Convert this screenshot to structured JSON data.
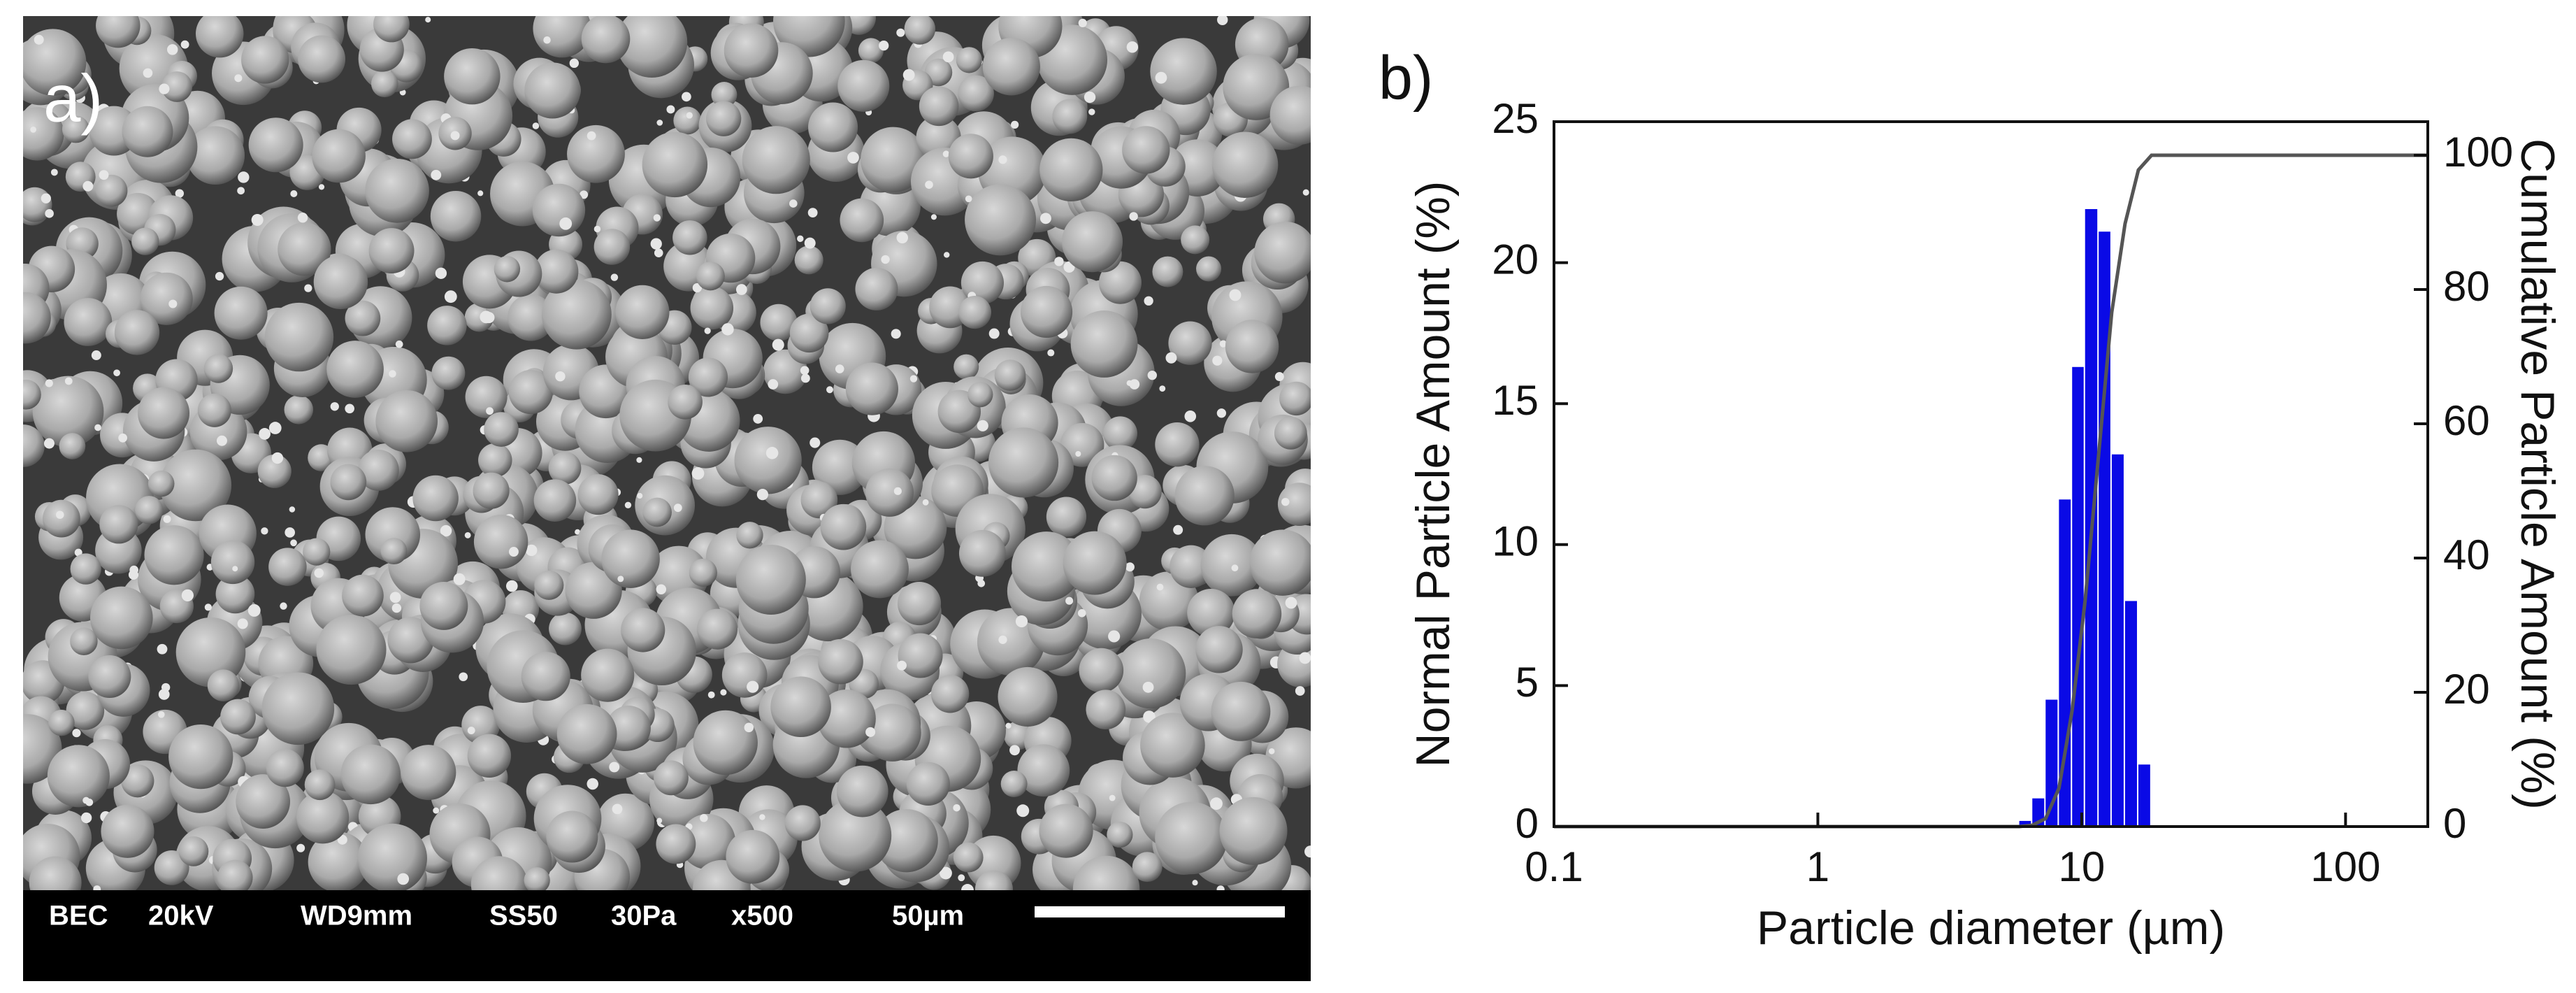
{
  "panel_a": {
    "label": "a)",
    "info_bar": [
      "BEC",
      "20kV",
      "WD9mm",
      "SS50",
      "30Pa",
      "x500",
      "50µm"
    ]
  },
  "panel_b": {
    "label": "b)"
  },
  "chart_data": {
    "type": "histogram",
    "xlabel": "Particle diameter (µm)",
    "ylabel": "Normal Particle Amount (%)",
    "y2label": "Cumulative Particle Amount (%)",
    "xscale": "log",
    "bins": [
      5.8,
      6.5,
      7.3,
      8.2,
      9.2,
      10.3,
      11.6,
      13.0,
      14.6,
      16.4,
      18.4
    ],
    "values": [
      0.2,
      1.0,
      4.5,
      11.6,
      16.3,
      21.9,
      21.1,
      13.2,
      8.0,
      2.2
    ],
    "color": "#0a0ae6",
    "cumulative": {
      "axis": "y2",
      "color": "#555555",
      "x": [
        0.1,
        5.8,
        6.5,
        7.3,
        8.2,
        9.2,
        10.3,
        11.6,
        13.0,
        14.6,
        16.4,
        18.4,
        205
      ],
      "values": [
        0,
        0,
        0.2,
        1.2,
        5.7,
        17.3,
        33.6,
        55.5,
        76.6,
        89.8,
        97.8,
        100,
        100
      ]
    },
    "xlim": [
      0.1,
      205
    ],
    "xticks": [
      0.1,
      1,
      10,
      100
    ],
    "ylim": [
      0,
      25
    ],
    "yticks": [
      0,
      5,
      10,
      15,
      20,
      25
    ],
    "y2lim": [
      0,
      105
    ],
    "y2ticks": [
      0,
      20,
      40,
      60,
      80,
      100
    ]
  }
}
